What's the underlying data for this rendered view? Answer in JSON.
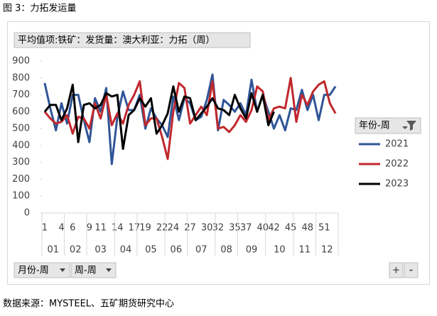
{
  "caption": "图 3：力拓发运量",
  "source": "数据来源：MYSTEEL、五矿期货研究中心",
  "chart_data": {
    "type": "line",
    "field_button": "平均值项:铁矿：发货量：澳大利亚：力拓（周）",
    "categories": [
      "1",
      null,
      null,
      "4",
      null,
      "6",
      null,
      null,
      "9",
      null,
      "11",
      null,
      null,
      "14",
      null,
      null,
      "17",
      null,
      "19",
      null,
      null,
      "22",
      null,
      "24",
      null,
      null,
      "27",
      null,
      null,
      "30",
      null,
      "32",
      null,
      null,
      "35",
      null,
      "37",
      null,
      null,
      "40",
      null,
      "42",
      null,
      null,
      "45",
      null,
      null,
      "48",
      null,
      null,
      "51",
      null,
      null
    ],
    "month_groups": [
      {
        "label": "01",
        "span": 4
      },
      {
        "label": "02",
        "span": 4
      },
      {
        "label": "03",
        "span": 5
      },
      {
        "label": "04",
        "span": 4
      },
      {
        "label": "05",
        "span": 5
      },
      {
        "label": "06",
        "span": 4
      },
      {
        "label": "07",
        "span": 5
      },
      {
        "label": "08",
        "span": 4
      },
      {
        "label": "09",
        "span": 5
      },
      {
        "label": "10",
        "span": 5
      },
      {
        "label": "11",
        "span": 4
      },
      {
        "label": "12",
        "span": 4
      }
    ],
    "legend_title": "年份-周",
    "series": [
      {
        "name": "2021",
        "color": "#2f5597",
        "values": [
          770,
          620,
          490,
          650,
          530,
          700,
          700,
          550,
          420,
          680,
          600,
          740,
          290,
          570,
          720,
          610,
          610,
          700,
          500,
          620,
          560,
          520,
          450,
          690,
          550,
          680,
          650,
          550,
          570,
          670,
          820,
          490,
          670,
          640,
          600,
          650,
          580,
          790,
          600,
          700,
          600,
          500,
          580,
          490,
          620,
          610,
          730,
          610,
          700,
          550,
          700,
          700,
          750
        ]
      },
      {
        "name": "2022",
        "color": "#c0282d",
        "values": [
          600,
          560,
          530,
          540,
          580,
          470,
          570,
          560,
          500,
          650,
          560,
          700,
          520,
          590,
          530,
          640,
          700,
          780,
          520,
          560,
          560,
          450,
          320,
          600,
          770,
          740,
          530,
          580,
          630,
          580,
          780,
          500,
          510,
          480,
          520,
          580,
          540,
          610,
          750,
          720,
          550,
          620,
          630,
          620,
          800,
          540,
          700,
          640,
          720,
          760,
          780,
          650,
          590
        ]
      },
      {
        "name": "2023",
        "color": "#000000",
        "values": [
          600,
          640,
          640,
          550,
          620,
          760,
          420,
          640,
          650,
          620,
          640,
          710,
          690,
          700,
          380,
          580,
          610,
          680,
          630,
          680,
          470,
          520,
          590,
          750,
          600,
          690,
          680,
          550,
          590,
          630,
          680,
          620,
          610,
          580,
          700,
          620,
          560,
          710,
          600,
          700,
          520,
          600,
          null,
          null,
          null,
          null,
          null,
          null,
          null,
          null,
          null,
          null,
          null
        ]
      }
    ],
    "ylim": [
      0,
      900
    ],
    "yticks": [
      0,
      100,
      200,
      300,
      400,
      500,
      600,
      700,
      800,
      900
    ],
    "bottom_buttons": [
      "月份-周",
      "周-周"
    ],
    "zoom_buttons": [
      "+",
      "-"
    ]
  }
}
